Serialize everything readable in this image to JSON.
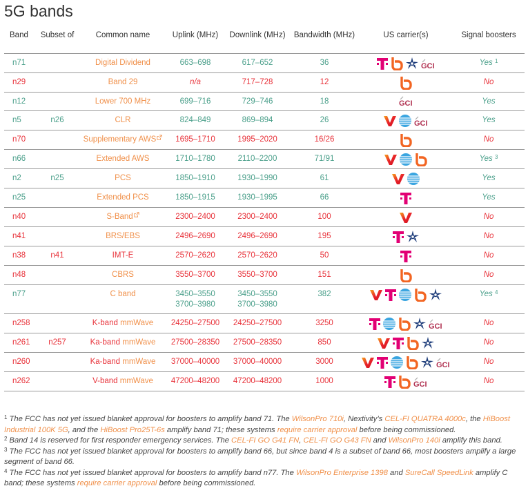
{
  "title": "5G bands",
  "colors": {
    "yes": "#4a9f8a",
    "no": "#e8323a",
    "link": "#f0904a"
  },
  "headers": [
    "Band",
    "Subset of",
    "Common name",
    "Uplink (MHz)",
    "Downlink (MHz)",
    "Bandwidth (MHz)",
    "US carrier(s)",
    "Signal boosters"
  ],
  "rows": [
    {
      "band": "n71",
      "subset": "",
      "name": "Digital Dividend",
      "name_link": true,
      "uplink": "663–698",
      "downlink": "617–652",
      "bandwidth": "36",
      "carriers": [
        "tmobile-icon",
        "boost-icon",
        "uscellular-icon",
        "gci-icon"
      ],
      "boosters": "Yes",
      "note": "1",
      "status": "yes"
    },
    {
      "band": "n29",
      "subset": "",
      "name": "Band 29",
      "name_link": true,
      "uplink": "n/a",
      "downlink": "717–728",
      "bandwidth": "12",
      "carriers": [
        "boost-icon"
      ],
      "boosters": "No",
      "status": "no"
    },
    {
      "band": "n12",
      "subset": "",
      "name": "Lower 700 MHz",
      "name_link": true,
      "uplink": "699–716",
      "downlink": "729–746",
      "bandwidth": "18",
      "carriers": [
        "gci-icon"
      ],
      "boosters": "Yes",
      "status": "yes"
    },
    {
      "band": "n5",
      "subset": "n26",
      "name": "CLR",
      "name_link": true,
      "uplink": "824–849",
      "downlink": "869–894",
      "bandwidth": "26",
      "carriers": [
        "verizon-icon",
        "att-icon",
        "gci-icon"
      ],
      "boosters": "Yes",
      "status": "yes"
    },
    {
      "band": "n70",
      "subset": "",
      "name": "Supplementary AWS",
      "name_link": true,
      "external": true,
      "uplink": "1695–1710",
      "downlink": "1995–2020",
      "bandwidth": "16/26",
      "carriers": [
        "boost-icon"
      ],
      "boosters": "No",
      "status": "no"
    },
    {
      "band": "n66",
      "subset": "",
      "name": "Extended AWS",
      "name_link": true,
      "uplink": "1710–1780",
      "downlink": "2110–2200",
      "bandwidth": "71/91",
      "carriers": [
        "verizon-icon",
        "att-icon",
        "boost-icon"
      ],
      "boosters": "Yes",
      "note": "3",
      "status": "yes"
    },
    {
      "band": "n2",
      "subset": "n25",
      "name": "PCS",
      "name_link": true,
      "uplink": "1850–1910",
      "downlink": "1930–1990",
      "bandwidth": "61",
      "carriers": [
        "verizon-icon",
        "att-icon"
      ],
      "boosters": "Yes",
      "status": "yes"
    },
    {
      "band": "n25",
      "subset": "",
      "name": "Extended PCS",
      "name_link": true,
      "uplink": "1850–1915",
      "downlink": "1930–1995",
      "bandwidth": "66",
      "carriers": [
        "tmobile-icon"
      ],
      "boosters": "Yes",
      "status": "yes"
    },
    {
      "band": "n40",
      "subset": "",
      "name": "S-Band",
      "name_link": true,
      "external": true,
      "uplink": "2300–2400",
      "downlink": "2300–2400",
      "bandwidth": "100",
      "carriers": [
        "verizon-icon"
      ],
      "boosters": "No",
      "status": "no"
    },
    {
      "band": "n41",
      "subset": "",
      "name": "BRS/EBS",
      "name_link": true,
      "uplink": "2496–2690",
      "downlink": "2496–2690",
      "bandwidth": "195",
      "carriers": [
        "tmobile-icon",
        "uscellular-icon"
      ],
      "boosters": "No",
      "status": "no"
    },
    {
      "band": "n38",
      "subset": "n41",
      "name": "IMT-E",
      "name_link": false,
      "uplink": "2570–2620",
      "downlink": "2570–2620",
      "bandwidth": "50",
      "carriers": [
        "tmobile-icon"
      ],
      "boosters": "No",
      "status": "no"
    },
    {
      "band": "n48",
      "subset": "",
      "name": "CBRS",
      "name_link": true,
      "uplink": "3550–3700",
      "downlink": "3550–3700",
      "bandwidth": "151",
      "carriers": [
        "boost-icon"
      ],
      "boosters": "No",
      "status": "no"
    },
    {
      "band": "n77",
      "subset": "",
      "name": "C band",
      "name_link": true,
      "uplink": "3450–3550\n3700–3980",
      "downlink": "3450–3550\n3700–3980",
      "bandwidth": "382",
      "carriers": [
        "verizon-icon",
        "tmobile-icon",
        "att-icon",
        "boost-icon",
        "uscellular-icon"
      ],
      "boosters": "Yes",
      "note": "4",
      "status": "yes"
    },
    {
      "band": "n258",
      "subset": "",
      "name": "K-band ",
      "name_suffix": "mmWave",
      "name_link": false,
      "uplink": "24250–27500",
      "downlink": "24250–27500",
      "bandwidth": "3250",
      "carriers": [
        "tmobile-icon",
        "att-icon",
        "boost-icon",
        "uscellular-icon",
        "gci-icon"
      ],
      "boosters": "No",
      "status": "no"
    },
    {
      "band": "n261",
      "subset": "n257",
      "name": "Ka-band ",
      "name_suffix": "mmWave",
      "name_link": false,
      "uplink": "27500–28350",
      "downlink": "27500–28350",
      "bandwidth": "850",
      "carriers": [
        "verizon-icon",
        "tmobile-icon",
        "boost-icon",
        "uscellular-icon"
      ],
      "boosters": "No",
      "status": "no"
    },
    {
      "band": "n260",
      "subset": "",
      "name": "Ka-band ",
      "name_suffix": "mmWave",
      "name_link": false,
      "uplink": "37000–40000",
      "downlink": "37000–40000",
      "bandwidth": "3000",
      "carriers": [
        "verizon-icon",
        "tmobile-icon",
        "att-icon",
        "boost-icon",
        "uscellular-icon",
        "gci-icon"
      ],
      "boosters": "No",
      "status": "no"
    },
    {
      "band": "n262",
      "subset": "",
      "name": "V-band ",
      "name_suffix": "mmWave",
      "name_link": false,
      "uplink": "47200–48200",
      "downlink": "47200–48200",
      "bandwidth": "1000",
      "carriers": [
        "tmobile-icon",
        "boost-icon",
        "gci-icon"
      ],
      "boosters": "No",
      "status": "no"
    }
  ],
  "footnotes": [
    {
      "num": "1",
      "parts": [
        {
          "t": " The FCC has not yet issued blanket approval for boosters to amplify band 71. The "
        },
        {
          "t": "WilsonPro 710i",
          "l": 1
        },
        {
          "t": ", Nextivity’s "
        },
        {
          "t": "CEL-FI QUATRA 4000c",
          "l": 1
        },
        {
          "t": ", the "
        },
        {
          "t": "HiBoost Industrial 100K 5G",
          "l": 1
        },
        {
          "t": ", and the "
        },
        {
          "t": "HiBoost Pro25T-6s",
          "l": 1
        },
        {
          "t": " amplify band 71; these systems "
        },
        {
          "t": "require carrier approval",
          "l": 1
        },
        {
          "t": " before being commissioned."
        }
      ]
    },
    {
      "num": "2",
      "parts": [
        {
          "t": " Band 14 is reserved for first responder emergency services. The "
        },
        {
          "t": "CEL-FI GO G41 FN",
          "l": 1
        },
        {
          "t": ", "
        },
        {
          "t": "CEL-FI GO G43 FN",
          "l": 1
        },
        {
          "t": " and "
        },
        {
          "t": "WilsonPro 140i",
          "l": 1
        },
        {
          "t": " amplify this band."
        }
      ]
    },
    {
      "num": "3",
      "parts": [
        {
          "t": " The FCC has not yet issued blanket approval for boosters to amplify band 66, but since band 4 is a subset of band 66, most boosters amplify a large segment of band 66."
        }
      ]
    },
    {
      "num": "4",
      "parts": [
        {
          "t": " The FCC has not yet issued blanket approval for boosters to amplify band n77. The "
        },
        {
          "t": "WilsonPro Enterprise 1398",
          "l": 1
        },
        {
          "t": " and "
        },
        {
          "t": "SureCall SpeedLink",
          "l": 1
        },
        {
          "t": " amplify C band; these systems "
        },
        {
          "t": "require carrier approval",
          "l": 1
        },
        {
          "t": " before being commissioned."
        }
      ]
    }
  ]
}
